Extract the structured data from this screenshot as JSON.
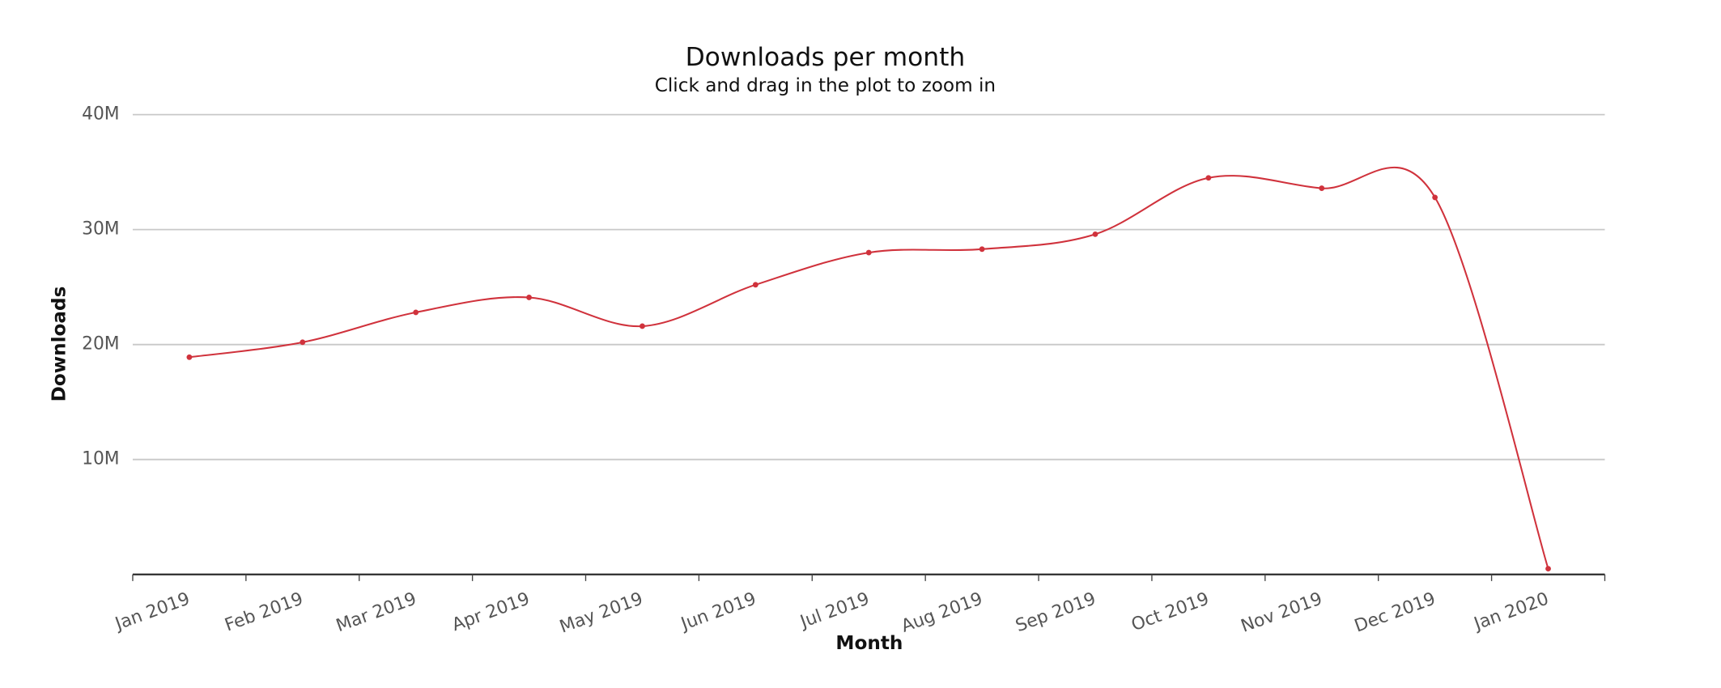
{
  "chart_data": {
    "type": "line",
    "title": "Downloads per month",
    "subtitle": "Click and drag in the plot to zoom in",
    "x_label": "Month",
    "y_label": "Downloads",
    "categories": [
      "Jan 2019",
      "Feb 2019",
      "Mar 2019",
      "Apr 2019",
      "May 2019",
      "Jun 2019",
      "Jul 2019",
      "Aug 2019",
      "Sep 2019",
      "Oct 2019",
      "Nov 2019",
      "Dec 2019",
      "Jan 2020"
    ],
    "series": [
      {
        "name": "Downloads",
        "color": "#d0323c",
        "values": [
          18900000,
          20200000,
          22800000,
          24100000,
          21600000,
          25200000,
          28000000,
          28300000,
          29600000,
          34500000,
          33600000,
          32800000,
          500000
        ]
      }
    ],
    "ylim": [
      0,
      40000000
    ],
    "yticks": [
      {
        "value": 10000000,
        "label": "10M"
      },
      {
        "value": 20000000,
        "label": "20M"
      },
      {
        "value": 30000000,
        "label": "30M"
      },
      {
        "value": 40000000,
        "label": "40M"
      }
    ],
    "grid": true
  }
}
